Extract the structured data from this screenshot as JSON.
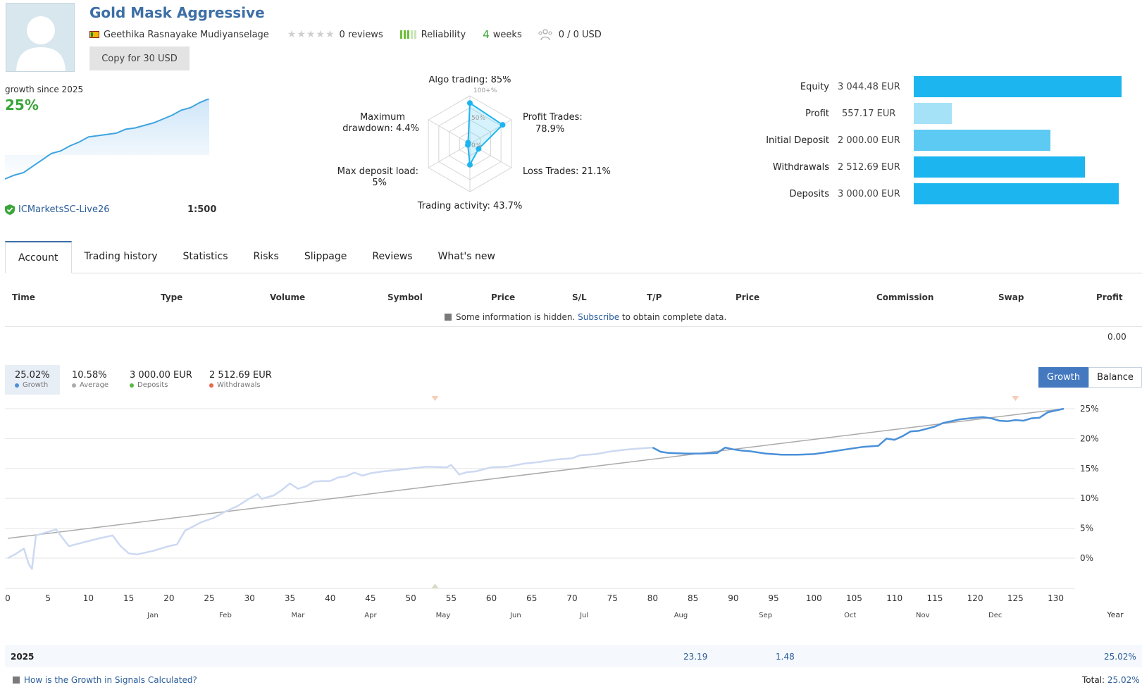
{
  "header": {
    "title": "Gold Mask Aggressive",
    "author": "Geethika Rasnayake Mudiyanselage",
    "reviews": "0 reviews",
    "reliability": "Reliability",
    "weeks_num": "4",
    "weeks_label": "weeks",
    "subscribers": "0 / 0 USD",
    "copy_button": "Copy for 30 USD"
  },
  "summary": {
    "growth_since": "growth since 2025",
    "growth_pct": "25%",
    "sparkline": [
      0,
      3,
      5,
      10,
      15,
      20,
      22,
      26,
      29,
      33,
      34,
      35,
      36,
      39,
      40,
      42,
      44,
      47,
      50,
      54,
      56,
      60,
      63
    ],
    "broker": "ICMarketsSC-Live26",
    "leverage": "1:500"
  },
  "radar": {
    "labels": {
      "algo": "Algo trading: 85%",
      "profit_trades_1": "Profit Trades:",
      "profit_trades_2": "78.9%",
      "loss_trades": "Loss Trades: 21.1%",
      "activity": "Trading activity: 43.7%",
      "deposit_load_1": "Max deposit load:",
      "deposit_load_2": "5%",
      "drawdown_1": "Maximum",
      "drawdown_2": "drawdown: 4.4%"
    },
    "scale": {
      "top": "100+%",
      "mid": "50%",
      "zero": "0%"
    },
    "values": {
      "algo": 85,
      "profit": 78.9,
      "loss": 21.1,
      "activity": 43.7,
      "load": 5,
      "drawdown": 4.4
    }
  },
  "equity": [
    {
      "label": "Equity",
      "value": "3 044.48 EUR",
      "amount": 3044.48,
      "color": "#1db5ef"
    },
    {
      "label": "Profit",
      "value": "557.17 EUR",
      "amount": 557.17,
      "color": "#a6e2f7"
    },
    {
      "label": "Initial Deposit",
      "value": "2 000.00 EUR",
      "amount": 2000.0,
      "color": "#5ccaf3"
    },
    {
      "label": "Withdrawals",
      "value": "2 512.69 EUR",
      "amount": 2512.69,
      "color": "#1db5ef"
    },
    {
      "label": "Deposits",
      "value": "3 000.00 EUR",
      "amount": 3000.0,
      "color": "#1db5ef"
    }
  ],
  "tabs": [
    "Account",
    "Trading history",
    "Statistics",
    "Risks",
    "Slippage",
    "Reviews",
    "What's new"
  ],
  "table": {
    "headers": [
      "Time",
      "Type",
      "Volume",
      "Symbol",
      "Price",
      "S/L",
      "T/P",
      "Price",
      "Commission",
      "Swap",
      "Profit"
    ],
    "hidden_text_1": "Some information is hidden.",
    "hidden_link": "Subscribe",
    "hidden_text_2": "to obtain complete data.",
    "total_profit": "0.00"
  },
  "stats": [
    {
      "value": "25.02%",
      "label": "Growth",
      "color": "#4a90d9"
    },
    {
      "value": "10.58%",
      "label": "Average",
      "color": "#aaaaaa"
    },
    {
      "value": "3 000.00 EUR",
      "label": "Deposits",
      "color": "#59b946"
    },
    {
      "value": "2 512.69 EUR",
      "label": "Withdrawals",
      "color": "#e8664a"
    }
  ],
  "toggle": {
    "growth": "Growth",
    "balance": "Balance"
  },
  "chart_data": {
    "type": "line",
    "x_ticks": [
      0,
      5,
      10,
      15,
      20,
      25,
      30,
      35,
      40,
      45,
      50,
      55,
      60,
      65,
      70,
      75,
      80,
      85,
      90,
      95,
      100,
      105,
      110,
      115,
      120,
      125,
      130
    ],
    "x_unit_label": "Year",
    "y_ticks": [
      "25%",
      "20%",
      "15%",
      "10%",
      "5%",
      "0%"
    ],
    "y_tick_values": [
      25,
      20,
      15,
      10,
      5,
      0
    ],
    "xlim": [
      0,
      134
    ],
    "ylim": [
      -5,
      25.5
    ],
    "months": [
      {
        "name": "Jan",
        "x": 18
      },
      {
        "name": "Feb",
        "x": 27
      },
      {
        "name": "Mar",
        "x": 36
      },
      {
        "name": "Apr",
        "x": 45
      },
      {
        "name": "May",
        "x": 54
      },
      {
        "name": "Jun",
        "x": 63
      },
      {
        "name": "Jul",
        "x": 71.5
      },
      {
        "name": "Aug",
        "x": 83.5
      },
      {
        "name": "Sep",
        "x": 94
      },
      {
        "name": "Oct",
        "x": 104.5
      },
      {
        "name": "Nov",
        "x": 113.5
      },
      {
        "name": "Dec",
        "x": 122.5
      }
    ],
    "series": [
      {
        "values": [
          [
            0,
            0
          ],
          [
            1,
            0.7
          ],
          [
            2,
            1.6
          ],
          [
            2.6,
            -1
          ],
          [
            3,
            -1.8
          ],
          [
            3.5,
            3.8
          ],
          [
            5,
            4.4
          ],
          [
            6,
            4.8
          ],
          [
            7,
            3
          ],
          [
            7.6,
            2
          ],
          [
            9,
            2.5
          ],
          [
            11,
            3.2
          ],
          [
            13,
            3.8
          ],
          [
            14,
            2
          ],
          [
            15,
            0.8
          ],
          [
            16,
            0.6
          ],
          [
            18,
            1.2
          ],
          [
            20,
            2
          ],
          [
            21,
            2.3
          ],
          [
            22,
            4.6
          ],
          [
            23,
            5.3
          ],
          [
            24,
            6
          ],
          [
            25.5,
            6.7
          ],
          [
            27,
            7.8
          ],
          [
            28.5,
            8.7
          ],
          [
            30,
            10
          ],
          [
            31,
            10.7
          ],
          [
            31.5,
            9.9
          ],
          [
            33,
            10.5
          ],
          [
            34,
            11.4
          ],
          [
            35,
            12.5
          ],
          [
            36,
            11.6
          ],
          [
            37,
            12
          ],
          [
            38,
            12.8
          ],
          [
            39,
            12.9
          ],
          [
            40,
            12.9
          ],
          [
            41,
            13.5
          ],
          [
            42,
            13.7
          ],
          [
            43,
            14.3
          ],
          [
            44,
            13.8
          ],
          [
            45,
            14.2
          ],
          [
            46.5,
            14.5
          ],
          [
            48,
            14.7
          ],
          [
            50,
            15
          ],
          [
            52,
            15.3
          ],
          [
            54.5,
            15.2
          ],
          [
            55,
            15.6
          ],
          [
            56,
            14
          ],
          [
            57,
            14.4
          ],
          [
            58,
            14.5
          ],
          [
            60,
            15.2
          ],
          [
            62,
            15.3
          ],
          [
            64,
            15.8
          ],
          [
            66,
            16.1
          ],
          [
            68,
            16.5
          ],
          [
            70,
            16.7
          ],
          [
            71,
            17.2
          ],
          [
            73,
            17.4
          ],
          [
            75,
            17.9
          ],
          [
            77,
            18.2
          ],
          [
            78,
            18.3
          ],
          [
            80,
            18.5
          ]
        ]
      },
      {
        "values": [
          [
            80,
            18.5
          ],
          [
            81,
            17.8
          ],
          [
            82,
            17.6
          ],
          [
            84,
            17.5
          ],
          [
            86,
            17.5
          ],
          [
            88,
            17.6
          ],
          [
            89,
            18.5
          ],
          [
            90,
            18.2
          ],
          [
            91,
            18
          ],
          [
            92,
            17.9
          ],
          [
            94,
            17.5
          ],
          [
            96,
            17.3
          ],
          [
            98,
            17.3
          ],
          [
            100,
            17.4
          ],
          [
            102,
            17.8
          ],
          [
            104,
            18.2
          ],
          [
            106,
            18.6
          ],
          [
            108,
            18.8
          ],
          [
            109,
            20
          ],
          [
            110,
            19.8
          ],
          [
            111,
            20.4
          ],
          [
            112,
            21.2
          ],
          [
            113,
            21.3
          ],
          [
            115,
            22
          ],
          [
            116,
            22.6
          ],
          [
            118,
            23.2
          ],
          [
            120,
            23.5
          ],
          [
            121,
            23.6
          ],
          [
            122,
            23.4
          ],
          [
            123,
            23
          ],
          [
            124,
            22.9
          ],
          [
            125,
            23.1
          ],
          [
            126,
            23
          ],
          [
            127,
            23.4
          ],
          [
            128,
            23.5
          ],
          [
            129,
            24.4
          ],
          [
            130,
            24.7
          ],
          [
            131,
            25
          ]
        ]
      },
      {
        "values": [
          [
            0,
            3.3
          ],
          [
            131,
            25
          ]
        ]
      }
    ],
    "markers": {
      "deposit_x": 53,
      "withdrawal_x": [
        53,
        125
      ]
    }
  },
  "year_row": {
    "year": "2025",
    "aug": "23.19",
    "sep": "1.48",
    "total": "25.02%"
  },
  "footer": {
    "link": "How is the Growth in Signals Calculated?",
    "total_label": "Total:",
    "total_value": "25.02%"
  }
}
